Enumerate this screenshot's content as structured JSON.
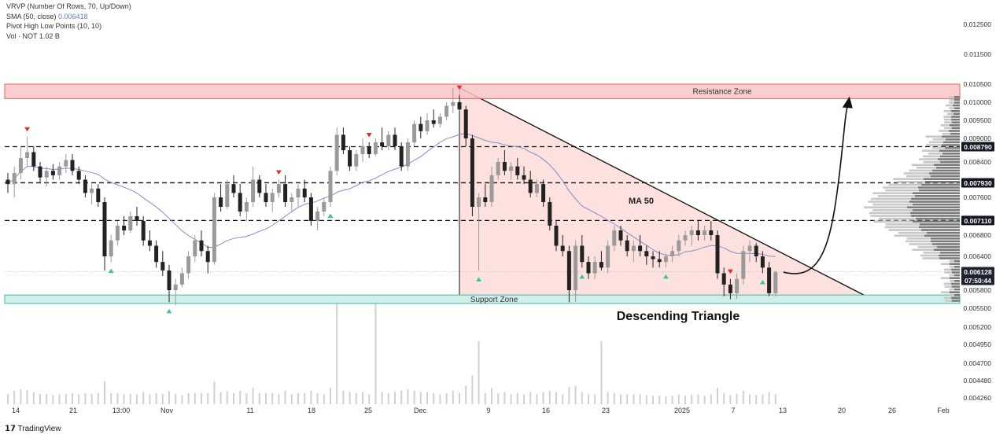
{
  "indicators": {
    "vrvp": "VRVP (Number Of Rows, 70, Up/Down)",
    "sma_label": "SMA (50, close)",
    "sma_value": "0.006418",
    "pivots": "Pivot High Low Points (10, 10)",
    "vol": "Vol · NOT  1.02 B"
  },
  "brand": "TradingView",
  "colors": {
    "up": "#9a9a9a",
    "down": "#222222",
    "ma": "#7e90c8",
    "resistance_fill": "#f7c6c6",
    "resistance_stroke": "#e06666",
    "support_fill": "#c7ece8",
    "support_stroke": "#4fb3a6",
    "triangle_fill": "#fbd9d6",
    "pivot_high": "#e03030",
    "pivot_low": "#3cc3a6"
  },
  "chart_data": {
    "type": "candlestick",
    "y_axis_ticks": [
      "0.012500",
      "0.011500",
      "0.010500",
      "0.010000",
      "0.009500",
      "0.009000",
      "0.008400",
      "0.007600",
      "0.006800",
      "0.006400",
      "0.005800",
      "0.005500",
      "0.005200",
      "0.004950",
      "0.004700",
      "0.004480",
      "0.004260"
    ],
    "y_axis_range": [
      0.00426,
      0.0126
    ],
    "x_axis_ticks": [
      "14",
      "21",
      "13:00",
      "Nov",
      "11",
      "18",
      "25",
      "Dec",
      "9",
      "16",
      "23",
      "2025",
      "7",
      "13",
      "20",
      "26",
      "Feb"
    ],
    "price_labels": [
      {
        "text": "0.008790",
        "value": 0.00879
      },
      {
        "text": "0.007930",
        "value": 0.00793
      },
      {
        "text": "0.007110",
        "value": 0.00711
      },
      {
        "text": "0.006128",
        "value": 0.006128
      },
      {
        "text": "07:50:44",
        "value": null
      }
    ],
    "horizontal_levels": [
      0.00879,
      0.00793,
      0.00711
    ],
    "resistance_zone": {
      "label": "Resistance Zone",
      "low": 0.0101,
      "high": 0.0105
    },
    "support_zone": {
      "label": "Support Zone",
      "low": 0.00558,
      "high": 0.00572
    },
    "pattern_label": "Descending Triangle",
    "ma_label": "MA 50",
    "triangle": {
      "apex_price": 0.0104,
      "base_price": 0.00572
    },
    "candles": [
      {
        "o": 0.008,
        "h": 0.00815,
        "l": 0.0077,
        "c": 0.0079
      },
      {
        "o": 0.0079,
        "h": 0.0083,
        "l": 0.0076,
        "c": 0.00815
      },
      {
        "o": 0.00815,
        "h": 0.0088,
        "l": 0.008,
        "c": 0.0085
      },
      {
        "o": 0.0085,
        "h": 0.00905,
        "l": 0.0083,
        "c": 0.00865
      },
      {
        "o": 0.00865,
        "h": 0.0088,
        "l": 0.0082,
        "c": 0.0083
      },
      {
        "o": 0.0083,
        "h": 0.0084,
        "l": 0.00795,
        "c": 0.00805
      },
      {
        "o": 0.00805,
        "h": 0.0083,
        "l": 0.00785,
        "c": 0.0082
      },
      {
        "o": 0.0082,
        "h": 0.00835,
        "l": 0.008,
        "c": 0.0081
      },
      {
        "o": 0.0081,
        "h": 0.0084,
        "l": 0.008,
        "c": 0.0083
      },
      {
        "o": 0.0083,
        "h": 0.0086,
        "l": 0.00815,
        "c": 0.00845
      },
      {
        "o": 0.00845,
        "h": 0.0086,
        "l": 0.0081,
        "c": 0.0082
      },
      {
        "o": 0.0082,
        "h": 0.0083,
        "l": 0.0079,
        "c": 0.008
      },
      {
        "o": 0.008,
        "h": 0.0081,
        "l": 0.0076,
        "c": 0.0077
      },
      {
        "o": 0.0077,
        "h": 0.0079,
        "l": 0.00745,
        "c": 0.0078
      },
      {
        "o": 0.0078,
        "h": 0.0079,
        "l": 0.0074,
        "c": 0.0075
      },
      {
        "o": 0.0075,
        "h": 0.0076,
        "l": 0.00615,
        "c": 0.0064
      },
      {
        "o": 0.0064,
        "h": 0.0068,
        "l": 0.0063,
        "c": 0.0067
      },
      {
        "o": 0.0067,
        "h": 0.0071,
        "l": 0.0066,
        "c": 0.007
      },
      {
        "o": 0.007,
        "h": 0.0072,
        "l": 0.0068,
        "c": 0.0069
      },
      {
        "o": 0.0069,
        "h": 0.0073,
        "l": 0.00685,
        "c": 0.0072
      },
      {
        "o": 0.0072,
        "h": 0.0074,
        "l": 0.007,
        "c": 0.0071
      },
      {
        "o": 0.0071,
        "h": 0.0072,
        "l": 0.0066,
        "c": 0.0067
      },
      {
        "o": 0.0067,
        "h": 0.0069,
        "l": 0.0065,
        "c": 0.0066
      },
      {
        "o": 0.0066,
        "h": 0.0067,
        "l": 0.0062,
        "c": 0.0063
      },
      {
        "o": 0.0063,
        "h": 0.0065,
        "l": 0.00605,
        "c": 0.00615
      },
      {
        "o": 0.00615,
        "h": 0.00625,
        "l": 0.0056,
        "c": 0.0058
      },
      {
        "o": 0.0058,
        "h": 0.006,
        "l": 0.00555,
        "c": 0.0059
      },
      {
        "o": 0.0059,
        "h": 0.0062,
        "l": 0.00585,
        "c": 0.0061
      },
      {
        "o": 0.0061,
        "h": 0.0065,
        "l": 0.006,
        "c": 0.0064
      },
      {
        "o": 0.0064,
        "h": 0.0068,
        "l": 0.0063,
        "c": 0.0067
      },
      {
        "o": 0.0067,
        "h": 0.0069,
        "l": 0.0064,
        "c": 0.0065
      },
      {
        "o": 0.0065,
        "h": 0.0066,
        "l": 0.0061,
        "c": 0.0063
      },
      {
        "o": 0.0063,
        "h": 0.0077,
        "l": 0.00625,
        "c": 0.0076
      },
      {
        "o": 0.0076,
        "h": 0.0079,
        "l": 0.0073,
        "c": 0.0074
      },
      {
        "o": 0.0074,
        "h": 0.008,
        "l": 0.00735,
        "c": 0.0079
      },
      {
        "o": 0.0079,
        "h": 0.0081,
        "l": 0.0076,
        "c": 0.0077
      },
      {
        "o": 0.0077,
        "h": 0.0079,
        "l": 0.0072,
        "c": 0.0073
      },
      {
        "o": 0.0073,
        "h": 0.0076,
        "l": 0.0071,
        "c": 0.0075
      },
      {
        "o": 0.0075,
        "h": 0.0083,
        "l": 0.0074,
        "c": 0.008
      },
      {
        "o": 0.008,
        "h": 0.0081,
        "l": 0.0076,
        "c": 0.0077
      },
      {
        "o": 0.0077,
        "h": 0.0079,
        "l": 0.0074,
        "c": 0.0075
      },
      {
        "o": 0.0075,
        "h": 0.0078,
        "l": 0.0073,
        "c": 0.0077
      },
      {
        "o": 0.0077,
        "h": 0.008,
        "l": 0.0076,
        "c": 0.0079
      },
      {
        "o": 0.0079,
        "h": 0.0081,
        "l": 0.0074,
        "c": 0.0075
      },
      {
        "o": 0.0075,
        "h": 0.0077,
        "l": 0.0073,
        "c": 0.0076
      },
      {
        "o": 0.0076,
        "h": 0.0079,
        "l": 0.0074,
        "c": 0.0078
      },
      {
        "o": 0.0078,
        "h": 0.008,
        "l": 0.0075,
        "c": 0.0076
      },
      {
        "o": 0.0076,
        "h": 0.0077,
        "l": 0.007,
        "c": 0.0071
      },
      {
        "o": 0.0071,
        "h": 0.0074,
        "l": 0.0069,
        "c": 0.0073
      },
      {
        "o": 0.0073,
        "h": 0.0076,
        "l": 0.0072,
        "c": 0.0075
      },
      {
        "o": 0.0075,
        "h": 0.0083,
        "l": 0.0074,
        "c": 0.0082
      },
      {
        "o": 0.0082,
        "h": 0.0093,
        "l": 0.0081,
        "c": 0.0091
      },
      {
        "o": 0.0091,
        "h": 0.0093,
        "l": 0.0086,
        "c": 0.0087
      },
      {
        "o": 0.0087,
        "h": 0.0088,
        "l": 0.0082,
        "c": 0.0083
      },
      {
        "o": 0.0083,
        "h": 0.0087,
        "l": 0.0082,
        "c": 0.0086
      },
      {
        "o": 0.0086,
        "h": 0.009,
        "l": 0.0084,
        "c": 0.0088
      },
      {
        "o": 0.0088,
        "h": 0.0089,
        "l": 0.0085,
        "c": 0.0086
      },
      {
        "o": 0.0086,
        "h": 0.009,
        "l": 0.00855,
        "c": 0.0089
      },
      {
        "o": 0.0089,
        "h": 0.0093,
        "l": 0.0087,
        "c": 0.0088
      },
      {
        "o": 0.0088,
        "h": 0.0092,
        "l": 0.0087,
        "c": 0.0091
      },
      {
        "o": 0.0091,
        "h": 0.0093,
        "l": 0.0087,
        "c": 0.0088
      },
      {
        "o": 0.0088,
        "h": 0.0089,
        "l": 0.0082,
        "c": 0.0083
      },
      {
        "o": 0.0083,
        "h": 0.009,
        "l": 0.0082,
        "c": 0.0089
      },
      {
        "o": 0.0089,
        "h": 0.0095,
        "l": 0.0088,
        "c": 0.0094
      },
      {
        "o": 0.0094,
        "h": 0.0096,
        "l": 0.009,
        "c": 0.0092
      },
      {
        "o": 0.0092,
        "h": 0.0097,
        "l": 0.0091,
        "c": 0.0095
      },
      {
        "o": 0.0095,
        "h": 0.0098,
        "l": 0.0093,
        "c": 0.0094
      },
      {
        "o": 0.0094,
        "h": 0.0097,
        "l": 0.0093,
        "c": 0.0096
      },
      {
        "o": 0.0096,
        "h": 0.01,
        "l": 0.0095,
        "c": 0.0099
      },
      {
        "o": 0.0099,
        "h": 0.0104,
        "l": 0.0097,
        "c": 0.01
      },
      {
        "o": 0.01,
        "h": 0.0102,
        "l": 0.0097,
        "c": 0.0098
      },
      {
        "o": 0.0098,
        "h": 0.0099,
        "l": 0.0088,
        "c": 0.009
      },
      {
        "o": 0.009,
        "h": 0.0091,
        "l": 0.0072,
        "c": 0.0074
      },
      {
        "o": 0.0074,
        "h": 0.0077,
        "l": 0.00615,
        "c": 0.0076
      },
      {
        "o": 0.0076,
        "h": 0.0079,
        "l": 0.0074,
        "c": 0.0075
      },
      {
        "o": 0.0075,
        "h": 0.0083,
        "l": 0.0074,
        "c": 0.0081
      },
      {
        "o": 0.0081,
        "h": 0.0085,
        "l": 0.008,
        "c": 0.0084
      },
      {
        "o": 0.0084,
        "h": 0.0087,
        "l": 0.0081,
        "c": 0.0082
      },
      {
        "o": 0.0082,
        "h": 0.0084,
        "l": 0.008,
        "c": 0.0083
      },
      {
        "o": 0.0083,
        "h": 0.0085,
        "l": 0.008,
        "c": 0.0081
      },
      {
        "o": 0.0081,
        "h": 0.0083,
        "l": 0.0079,
        "c": 0.008
      },
      {
        "o": 0.008,
        "h": 0.0082,
        "l": 0.0076,
        "c": 0.0077
      },
      {
        "o": 0.0077,
        "h": 0.008,
        "l": 0.0076,
        "c": 0.0079
      },
      {
        "o": 0.0079,
        "h": 0.008,
        "l": 0.0074,
        "c": 0.0075
      },
      {
        "o": 0.0075,
        "h": 0.0076,
        "l": 0.0069,
        "c": 0.007
      },
      {
        "o": 0.007,
        "h": 0.0071,
        "l": 0.0065,
        "c": 0.0066
      },
      {
        "o": 0.0066,
        "h": 0.0068,
        "l": 0.0064,
        "c": 0.0065
      },
      {
        "o": 0.0065,
        "h": 0.0066,
        "l": 0.0056,
        "c": 0.0058
      },
      {
        "o": 0.0058,
        "h": 0.0067,
        "l": 0.0056,
        "c": 0.0066
      },
      {
        "o": 0.0066,
        "h": 0.0068,
        "l": 0.0062,
        "c": 0.0063
      },
      {
        "o": 0.0063,
        "h": 0.0064,
        "l": 0.006,
        "c": 0.0061
      },
      {
        "o": 0.0061,
        "h": 0.0064,
        "l": 0.006,
        "c": 0.0063
      },
      {
        "o": 0.0063,
        "h": 0.0065,
        "l": 0.00615,
        "c": 0.0062
      },
      {
        "o": 0.0062,
        "h": 0.0067,
        "l": 0.0061,
        "c": 0.0066
      },
      {
        "o": 0.0066,
        "h": 0.007,
        "l": 0.0065,
        "c": 0.0069
      },
      {
        "o": 0.0069,
        "h": 0.007,
        "l": 0.0066,
        "c": 0.0067
      },
      {
        "o": 0.0067,
        "h": 0.0068,
        "l": 0.0064,
        "c": 0.0065
      },
      {
        "o": 0.0065,
        "h": 0.0067,
        "l": 0.0063,
        "c": 0.0066
      },
      {
        "o": 0.0066,
        "h": 0.0068,
        "l": 0.0064,
        "c": 0.0065
      },
      {
        "o": 0.0065,
        "h": 0.0066,
        "l": 0.00625,
        "c": 0.0064
      },
      {
        "o": 0.0064,
        "h": 0.0065,
        "l": 0.0062,
        "c": 0.00635
      },
      {
        "o": 0.00635,
        "h": 0.0065,
        "l": 0.0062,
        "c": 0.0063
      },
      {
        "o": 0.0063,
        "h": 0.00645,
        "l": 0.0062,
        "c": 0.0064
      },
      {
        "o": 0.0064,
        "h": 0.0066,
        "l": 0.0063,
        "c": 0.0065
      },
      {
        "o": 0.0065,
        "h": 0.0068,
        "l": 0.0064,
        "c": 0.0067
      },
      {
        "o": 0.0067,
        "h": 0.0069,
        "l": 0.0066,
        "c": 0.0068
      },
      {
        "o": 0.0068,
        "h": 0.007,
        "l": 0.0066,
        "c": 0.0069
      },
      {
        "o": 0.0069,
        "h": 0.0071,
        "l": 0.0067,
        "c": 0.0068
      },
      {
        "o": 0.0068,
        "h": 0.007,
        "l": 0.0067,
        "c": 0.0069
      },
      {
        "o": 0.0069,
        "h": 0.0071,
        "l": 0.0067,
        "c": 0.0068
      },
      {
        "o": 0.0068,
        "h": 0.0069,
        "l": 0.006,
        "c": 0.0061
      },
      {
        "o": 0.0061,
        "h": 0.0062,
        "l": 0.0057,
        "c": 0.0059
      },
      {
        "o": 0.0059,
        "h": 0.006,
        "l": 0.00565,
        "c": 0.00575
      },
      {
        "o": 0.00575,
        "h": 0.0061,
        "l": 0.00565,
        "c": 0.006
      },
      {
        "o": 0.006,
        "h": 0.0066,
        "l": 0.0059,
        "c": 0.0065
      },
      {
        "o": 0.0065,
        "h": 0.0067,
        "l": 0.0063,
        "c": 0.0066
      },
      {
        "o": 0.0066,
        "h": 0.00665,
        "l": 0.0063,
        "c": 0.0064
      },
      {
        "o": 0.0064,
        "h": 0.0065,
        "l": 0.0061,
        "c": 0.0062
      },
      {
        "o": 0.0062,
        "h": 0.0063,
        "l": 0.0057,
        "c": 0.00575
      },
      {
        "o": 0.00575,
        "h": 0.00615,
        "l": 0.0057,
        "c": 0.00612
      }
    ]
  }
}
